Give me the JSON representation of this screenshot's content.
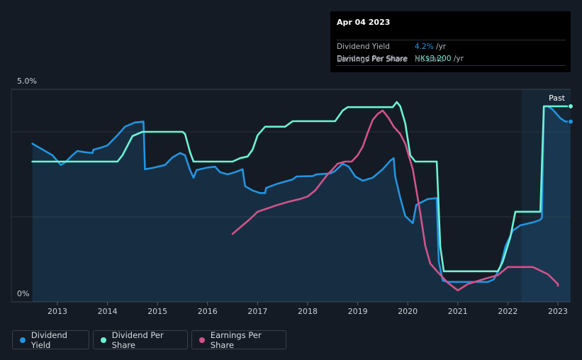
{
  "tooltip": {
    "date": "Apr 04 2023",
    "rows": [
      {
        "label": "Dividend Yield",
        "value": "4.2%",
        "unit": " /yr",
        "color": "#2394df"
      },
      {
        "label": "Dividend Per Share",
        "value": "HK$3.200",
        "unit": " /yr",
        "color": "#6cf3d5"
      },
      {
        "label": "Earnings Per Share",
        "value": "No data",
        "unit": "",
        "color": "#7e838a"
      }
    ]
  },
  "legend": [
    {
      "label": "Dividend Yield",
      "color": "#2394df"
    },
    {
      "label": "Dividend Per Share",
      "color": "#6cf3d5"
    },
    {
      "label": "Earnings Per Share",
      "color": "#d1538a"
    }
  ],
  "chart_data": {
    "type": "line",
    "title": "",
    "past_label": "Past",
    "y_top_label": "5.0%",
    "y_bottom_label": "0%",
    "ylim": [
      0,
      5.0
    ],
    "xlim": [
      2012.5,
      2023.25
    ],
    "past_start": 2022.27,
    "x_ticks": [
      "2013",
      "2014",
      "2015",
      "2016",
      "2017",
      "2018",
      "2019",
      "2020",
      "2021",
      "2022",
      "2023"
    ],
    "series": [
      {
        "name": "Dividend Yield",
        "color": "#2394df",
        "fill": true,
        "points": [
          [
            2012.5,
            3.72
          ],
          [
            2012.9,
            3.45
          ],
          [
            2013.07,
            3.22
          ],
          [
            2013.15,
            3.28
          ],
          [
            2013.3,
            3.45
          ],
          [
            2013.4,
            3.55
          ],
          [
            2013.55,
            3.52
          ],
          [
            2013.7,
            3.5
          ],
          [
            2013.72,
            3.58
          ],
          [
            2013.85,
            3.62
          ],
          [
            2014.0,
            3.68
          ],
          [
            2014.2,
            3.92
          ],
          [
            2014.35,
            4.12
          ],
          [
            2014.55,
            4.22
          ],
          [
            2014.72,
            4.24
          ],
          [
            2014.75,
            3.12
          ],
          [
            2014.9,
            3.15
          ],
          [
            2015.15,
            3.22
          ],
          [
            2015.3,
            3.4
          ],
          [
            2015.45,
            3.5
          ],
          [
            2015.55,
            3.45
          ],
          [
            2015.65,
            3.1
          ],
          [
            2015.72,
            2.92
          ],
          [
            2015.78,
            3.1
          ],
          [
            2016.0,
            3.16
          ],
          [
            2016.15,
            3.18
          ],
          [
            2016.25,
            3.05
          ],
          [
            2016.4,
            3.0
          ],
          [
            2016.55,
            3.05
          ],
          [
            2016.7,
            3.12
          ],
          [
            2016.75,
            2.72
          ],
          [
            2016.9,
            2.62
          ],
          [
            2017.05,
            2.56
          ],
          [
            2017.15,
            2.56
          ],
          [
            2017.17,
            2.68
          ],
          [
            2017.4,
            2.78
          ],
          [
            2017.7,
            2.88
          ],
          [
            2017.78,
            2.95
          ],
          [
            2018.1,
            2.96
          ],
          [
            2018.18,
            3.0
          ],
          [
            2018.45,
            3.02
          ],
          [
            2018.55,
            3.08
          ],
          [
            2018.7,
            3.25
          ],
          [
            2018.82,
            3.18
          ],
          [
            2018.95,
            2.95
          ],
          [
            2019.1,
            2.85
          ],
          [
            2019.3,
            2.92
          ],
          [
            2019.5,
            3.12
          ],
          [
            2019.65,
            3.32
          ],
          [
            2019.72,
            3.38
          ],
          [
            2019.75,
            2.95
          ],
          [
            2019.85,
            2.45
          ],
          [
            2019.95,
            2.02
          ],
          [
            2020.1,
            1.85
          ],
          [
            2020.17,
            2.28
          ],
          [
            2020.4,
            2.42
          ],
          [
            2020.58,
            2.44
          ],
          [
            2020.62,
            0.95
          ],
          [
            2020.7,
            0.5
          ],
          [
            2020.8,
            0.47
          ],
          [
            2021.0,
            0.47
          ],
          [
            2021.3,
            0.47
          ],
          [
            2021.6,
            0.47
          ],
          [
            2021.72,
            0.53
          ],
          [
            2021.85,
            0.82
          ],
          [
            2021.95,
            1.3
          ],
          [
            2022.1,
            1.68
          ],
          [
            2022.25,
            1.8
          ],
          [
            2022.5,
            1.87
          ],
          [
            2022.63,
            1.92
          ],
          [
            2022.68,
            1.97
          ],
          [
            2022.72,
            4.6
          ],
          [
            2022.8,
            4.6
          ],
          [
            2022.9,
            4.52
          ],
          [
            2023.05,
            4.32
          ],
          [
            2023.15,
            4.24
          ],
          [
            2023.25,
            4.24
          ]
        ]
      },
      {
        "name": "Dividend Per Share",
        "color": "#6cf3d5",
        "fill": false,
        "points": [
          [
            2012.5,
            3.3
          ],
          [
            2013.0,
            3.3
          ],
          [
            2013.5,
            3.3
          ],
          [
            2014.0,
            3.3
          ],
          [
            2014.2,
            3.3
          ],
          [
            2014.3,
            3.45
          ],
          [
            2014.5,
            3.9
          ],
          [
            2014.7,
            4.0
          ],
          [
            2015.0,
            4.0
          ],
          [
            2015.5,
            4.0
          ],
          [
            2015.55,
            3.95
          ],
          [
            2015.65,
            3.52
          ],
          [
            2015.72,
            3.3
          ],
          [
            2016.5,
            3.3
          ],
          [
            2016.65,
            3.38
          ],
          [
            2016.8,
            3.42
          ],
          [
            2016.9,
            3.58
          ],
          [
            2017.0,
            3.92
          ],
          [
            2017.15,
            4.12
          ],
          [
            2017.55,
            4.12
          ],
          [
            2017.7,
            4.25
          ],
          [
            2018.55,
            4.25
          ],
          [
            2018.7,
            4.5
          ],
          [
            2018.8,
            4.58
          ],
          [
            2019.7,
            4.58
          ],
          [
            2019.78,
            4.7
          ],
          [
            2019.85,
            4.6
          ],
          [
            2019.95,
            4.2
          ],
          [
            2020.05,
            3.45
          ],
          [
            2020.15,
            3.3
          ],
          [
            2020.58,
            3.3
          ],
          [
            2020.65,
            1.3
          ],
          [
            2020.72,
            0.72
          ],
          [
            2021.0,
            0.72
          ],
          [
            2021.5,
            0.72
          ],
          [
            2021.8,
            0.72
          ],
          [
            2021.9,
            0.95
          ],
          [
            2022.05,
            1.52
          ],
          [
            2022.15,
            2.12
          ],
          [
            2022.65,
            2.12
          ],
          [
            2022.72,
            4.6
          ],
          [
            2023.25,
            4.6
          ]
        ]
      },
      {
        "name": "Earnings Per Share",
        "color": "#d1538a",
        "fill": false,
        "points": [
          [
            2016.5,
            1.6
          ],
          [
            2016.7,
            1.8
          ],
          [
            2016.85,
            1.95
          ],
          [
            2017.0,
            2.12
          ],
          [
            2017.2,
            2.2
          ],
          [
            2017.4,
            2.28
          ],
          [
            2017.6,
            2.35
          ],
          [
            2017.85,
            2.42
          ],
          [
            2018.0,
            2.48
          ],
          [
            2018.15,
            2.62
          ],
          [
            2018.3,
            2.85
          ],
          [
            2018.4,
            3.0
          ],
          [
            2018.5,
            3.12
          ],
          [
            2018.6,
            3.25
          ],
          [
            2018.75,
            3.3
          ],
          [
            2018.88,
            3.3
          ],
          [
            2019.0,
            3.45
          ],
          [
            2019.1,
            3.65
          ],
          [
            2019.2,
            3.98
          ],
          [
            2019.3,
            4.28
          ],
          [
            2019.4,
            4.42
          ],
          [
            2019.5,
            4.5
          ],
          [
            2019.62,
            4.32
          ],
          [
            2019.72,
            4.12
          ],
          [
            2019.85,
            3.95
          ],
          [
            2019.95,
            3.72
          ],
          [
            2020.1,
            3.12
          ],
          [
            2020.25,
            2.1
          ],
          [
            2020.35,
            1.32
          ],
          [
            2020.45,
            0.9
          ],
          [
            2020.6,
            0.7
          ],
          [
            2020.8,
            0.45
          ],
          [
            2021.0,
            0.27
          ],
          [
            2021.2,
            0.42
          ],
          [
            2021.5,
            0.53
          ],
          [
            2021.8,
            0.63
          ],
          [
            2022.0,
            0.82
          ],
          [
            2022.5,
            0.82
          ],
          [
            2022.8,
            0.65
          ],
          [
            2023.0,
            0.42
          ],
          [
            2023.0,
            0.38
          ]
        ]
      }
    ]
  }
}
